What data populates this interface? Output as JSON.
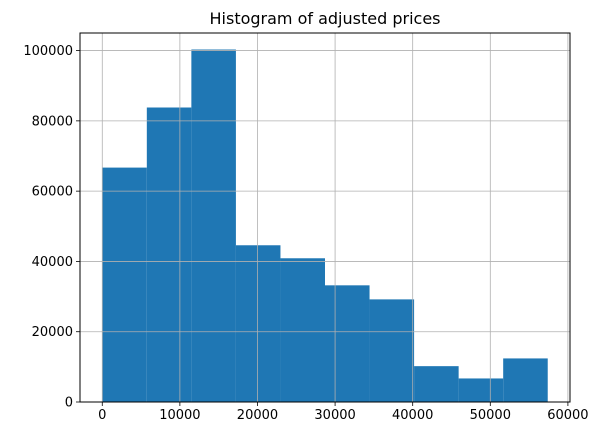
{
  "chart_data": {
    "type": "bar",
    "title": "Histogram of adjusted prices",
    "xlabel": "",
    "ylabel": "",
    "xlim": [
      -2870,
      60270
    ],
    "ylim": [
      0,
      105000
    ],
    "grid": true,
    "bins": [
      {
        "x0": 0,
        "x1": 5740,
        "value": 66700
      },
      {
        "x0": 5740,
        "x1": 11480,
        "value": 83800
      },
      {
        "x0": 11480,
        "x1": 17220,
        "value": 100300
      },
      {
        "x0": 17220,
        "x1": 22960,
        "value": 44600
      },
      {
        "x0": 22960,
        "x1": 28700,
        "value": 40900
      },
      {
        "x0": 28700,
        "x1": 34440,
        "value": 33200
      },
      {
        "x0": 34440,
        "x1": 40180,
        "value": 29200
      },
      {
        "x0": 40180,
        "x1": 45920,
        "value": 10200
      },
      {
        "x0": 45920,
        "x1": 51660,
        "value": 6700
      },
      {
        "x0": 51660,
        "x1": 57400,
        "value": 12400
      }
    ],
    "xticks": [
      0,
      10000,
      20000,
      30000,
      40000,
      50000,
      60000
    ],
    "xtick_labels": [
      "0",
      "10000",
      "20000",
      "30000",
      "40000",
      "50000",
      "60000"
    ],
    "yticks": [
      0,
      20000,
      40000,
      60000,
      80000,
      100000
    ],
    "ytick_labels": [
      "0",
      "20000",
      "40000",
      "60000",
      "80000",
      "100000"
    ],
    "bar_color": "#1f77b4",
    "grid_color": "#b0b0b0"
  }
}
